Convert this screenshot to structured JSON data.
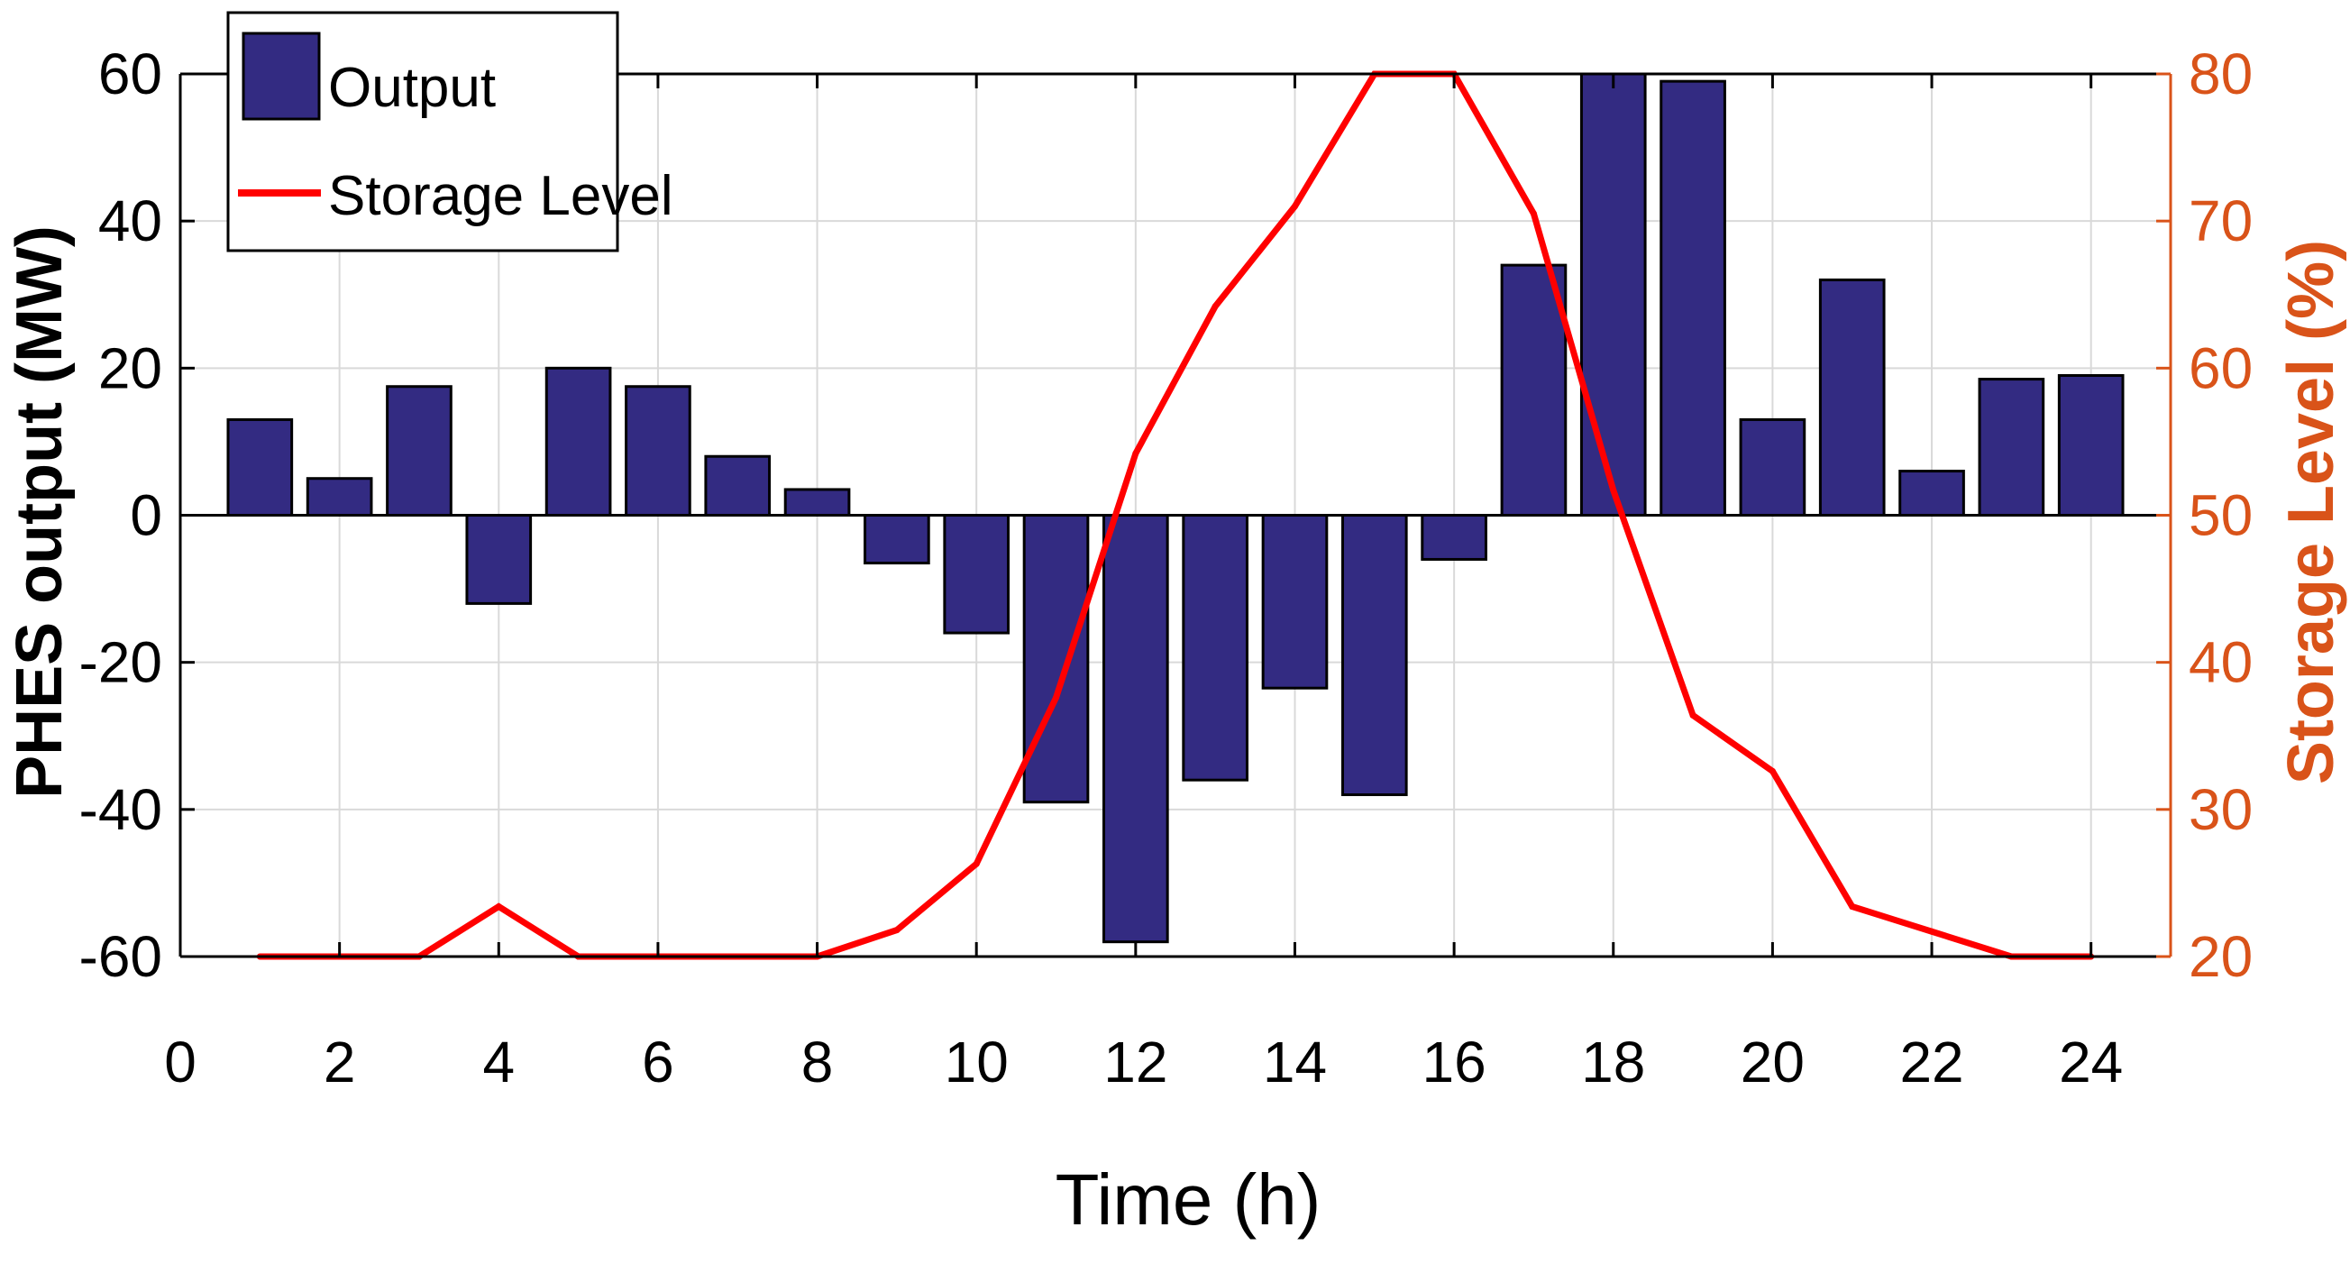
{
  "chart_data": {
    "type": "bar",
    "xlabel": "Time (h)",
    "ylabel_left": "PHES output (MW)",
    "ylabel_right": "Storage Level (%)",
    "xlim": [
      0,
      25
    ],
    "xticks": [
      0,
      2,
      4,
      6,
      8,
      10,
      12,
      14,
      16,
      18,
      20,
      22,
      24
    ],
    "ylim_left": [
      -60,
      60
    ],
    "yticks_left": [
      -60,
      -40,
      -20,
      0,
      20,
      40,
      60
    ],
    "ylim_right": [
      20,
      80
    ],
    "yticks_right": [
      20,
      30,
      40,
      50,
      60,
      70,
      80
    ],
    "grid": true,
    "legend_position": "top-left",
    "x": [
      1,
      2,
      3,
      4,
      5,
      6,
      7,
      8,
      9,
      10,
      11,
      12,
      13,
      14,
      15,
      16,
      17,
      18,
      19,
      20,
      21,
      22,
      23,
      24
    ],
    "series": [
      {
        "name": "Output",
        "type": "bar",
        "axis": "left",
        "color": "#332b82",
        "values": [
          13,
          5,
          17.5,
          -12,
          20,
          17.5,
          8,
          3.5,
          -6.5,
          -16,
          -39,
          -58,
          -36,
          -23.5,
          -38,
          -6,
          34,
          60,
          59,
          13,
          32,
          6,
          18.5,
          19
        ]
      },
      {
        "name": "Storage Level",
        "type": "line",
        "axis": "right",
        "color": "#ff0000",
        "values": [
          20,
          20,
          20,
          23.4,
          20,
          20,
          20,
          20,
          21.8,
          26.3,
          37.6,
          54.2,
          64.2,
          71,
          80,
          80,
          70.5,
          51.7,
          36.4,
          32.6,
          23.4,
          21.7,
          20,
          20
        ]
      }
    ]
  },
  "colors": {
    "bar_fill": "#332b82",
    "line": "#ff0000",
    "right_axis": "#d95319",
    "grid": "#d9d9d9"
  }
}
